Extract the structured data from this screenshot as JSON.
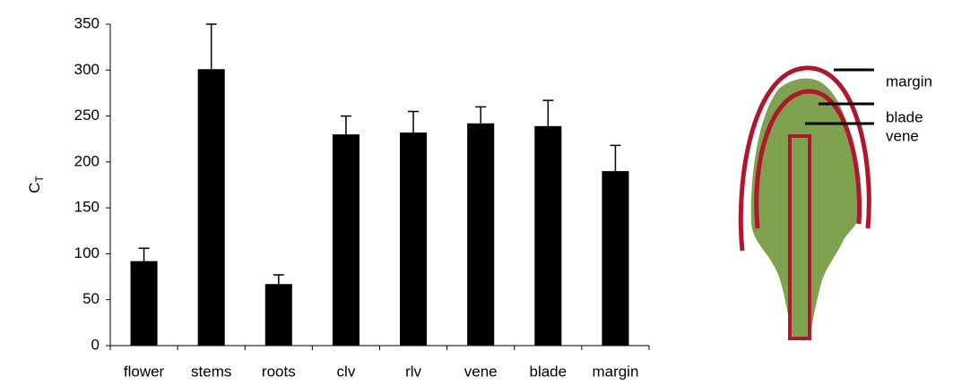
{
  "chart_data": {
    "type": "bar",
    "y_label": "C",
    "y_label_subscript": "T",
    "categories": [
      "flower",
      "stems",
      "roots",
      "clv",
      "rlv",
      "vene",
      "blade",
      "margin"
    ],
    "values": [
      92,
      301,
      67,
      230,
      232,
      242,
      239,
      190
    ],
    "errors": [
      14,
      49,
      10,
      20,
      23,
      18,
      28,
      28
    ],
    "color": "#000000",
    "ylim": [
      0,
      350
    ],
    "yticks": [
      0,
      50,
      100,
      150,
      200,
      250,
      300,
      350
    ],
    "grid": false,
    "annotations": [
      "margin",
      "blade",
      "vene"
    ]
  }
}
